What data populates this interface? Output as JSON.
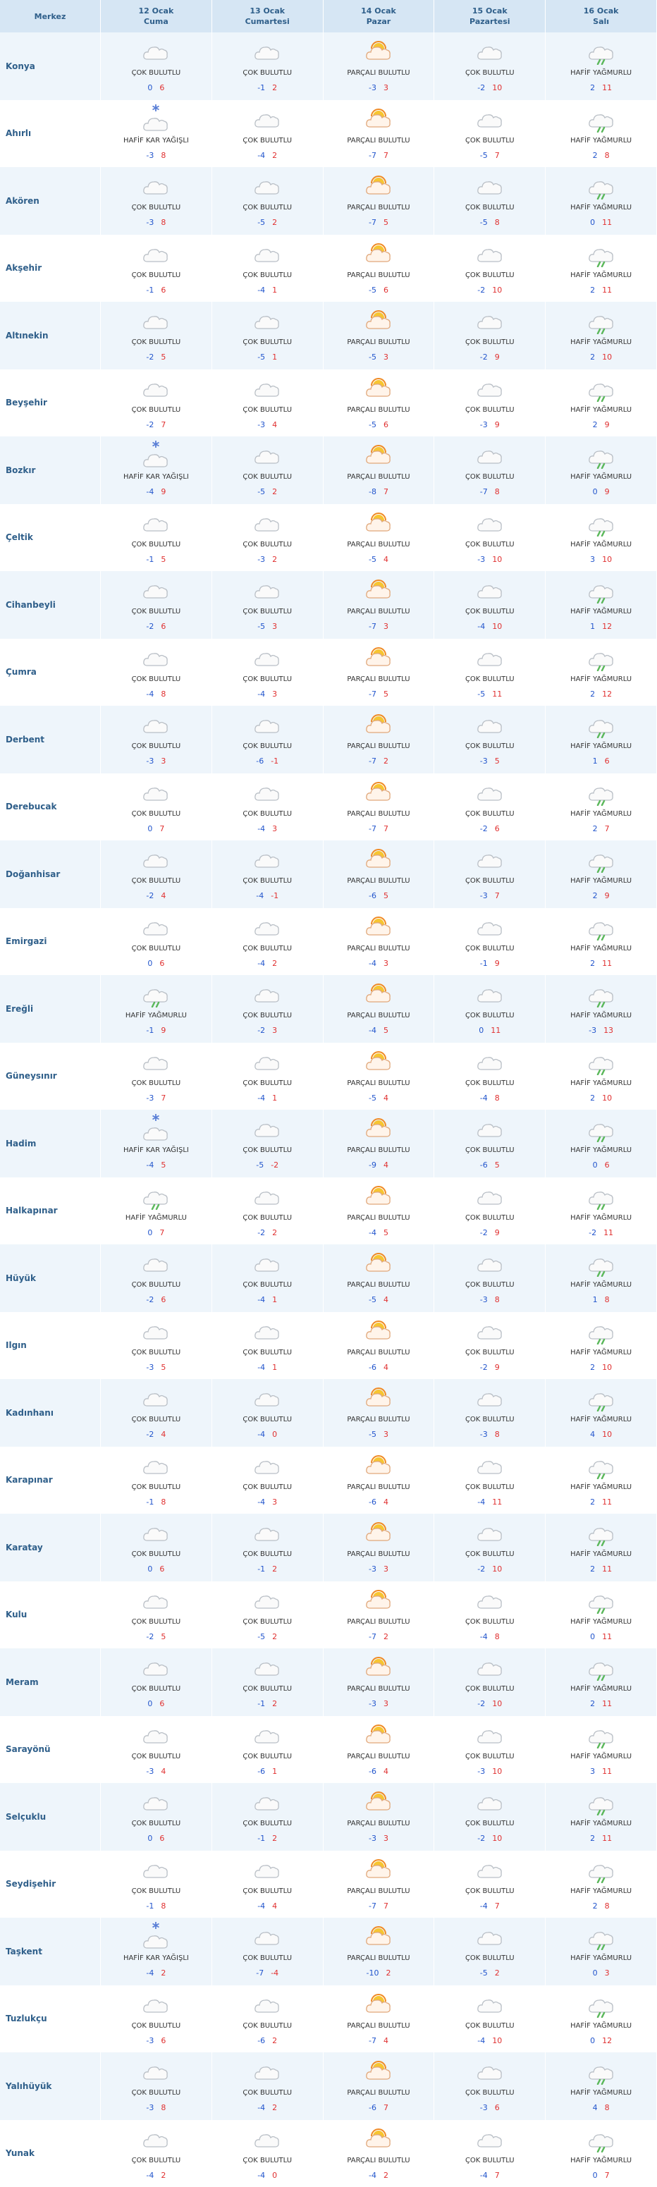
{
  "header": {
    "corner": "Merkez",
    "days": [
      {
        "date": "12 Ocak",
        "day": "Cuma"
      },
      {
        "date": "13 Ocak",
        "day": "Cumartesi"
      },
      {
        "date": "14 Ocak",
        "day": "Pazar"
      },
      {
        "date": "15 Ocak",
        "day": "Pazartesi"
      },
      {
        "date": "16 Ocak",
        "day": "Salı"
      }
    ]
  },
  "rows": [
    {
      "name": "Konya",
      "cells": [
        {
          "c": "ÇOK BULUTLU",
          "lo": 0,
          "hi": 6
        },
        {
          "c": "ÇOK BULUTLU",
          "lo": -1,
          "hi": 2
        },
        {
          "c": "PARÇALI BULUTLU",
          "lo": -3,
          "hi": 3
        },
        {
          "c": "ÇOK BULUTLU",
          "lo": -2,
          "hi": 10
        },
        {
          "c": "HAFİF YAĞMURLU",
          "lo": 2,
          "hi": 11
        }
      ]
    },
    {
      "name": "Ahırlı",
      "cells": [
        {
          "c": "HAFİF KAR YAĞIŞLI",
          "lo": -3,
          "hi": 8
        },
        {
          "c": "ÇOK BULUTLU",
          "lo": -4,
          "hi": 2
        },
        {
          "c": "PARÇALI BULUTLU",
          "lo": -7,
          "hi": 7
        },
        {
          "c": "ÇOK BULUTLU",
          "lo": -5,
          "hi": 7
        },
        {
          "c": "HAFİF YAĞMURLU",
          "lo": 2,
          "hi": 8
        }
      ]
    },
    {
      "name": "Akören",
      "cells": [
        {
          "c": "ÇOK BULUTLU",
          "lo": -3,
          "hi": 8
        },
        {
          "c": "ÇOK BULUTLU",
          "lo": -5,
          "hi": 2
        },
        {
          "c": "PARÇALI BULUTLU",
          "lo": -7,
          "hi": 5
        },
        {
          "c": "ÇOK BULUTLU",
          "lo": -5,
          "hi": 8
        },
        {
          "c": "HAFİF YAĞMURLU",
          "lo": 0,
          "hi": 11
        }
      ]
    },
    {
      "name": "Akşehir",
      "cells": [
        {
          "c": "ÇOK BULUTLU",
          "lo": -1,
          "hi": 6
        },
        {
          "c": "ÇOK BULUTLU",
          "lo": -4,
          "hi": 1
        },
        {
          "c": "PARÇALI BULUTLU",
          "lo": -5,
          "hi": 6
        },
        {
          "c": "ÇOK BULUTLU",
          "lo": -2,
          "hi": 10
        },
        {
          "c": "HAFİF YAĞMURLU",
          "lo": 2,
          "hi": 11
        }
      ]
    },
    {
      "name": "Altınekin",
      "cells": [
        {
          "c": "ÇOK BULUTLU",
          "lo": -2,
          "hi": 5
        },
        {
          "c": "ÇOK BULUTLU",
          "lo": -5,
          "hi": 1
        },
        {
          "c": "PARÇALI BULUTLU",
          "lo": -5,
          "hi": 3
        },
        {
          "c": "ÇOK BULUTLU",
          "lo": -2,
          "hi": 9
        },
        {
          "c": "HAFİF YAĞMURLU",
          "lo": 2,
          "hi": 10
        }
      ]
    },
    {
      "name": "Beyşehir",
      "cells": [
        {
          "c": "ÇOK BULUTLU",
          "lo": -2,
          "hi": 7
        },
        {
          "c": "ÇOK BULUTLU",
          "lo": -3,
          "hi": 4
        },
        {
          "c": "PARÇALI BULUTLU",
          "lo": -5,
          "hi": 6
        },
        {
          "c": "ÇOK BULUTLU",
          "lo": -3,
          "hi": 9
        },
        {
          "c": "HAFİF YAĞMURLU",
          "lo": 2,
          "hi": 9
        }
      ]
    },
    {
      "name": "Bozkır",
      "cells": [
        {
          "c": "HAFİF KAR YAĞIŞLI",
          "lo": -4,
          "hi": 9
        },
        {
          "c": "ÇOK BULUTLU",
          "lo": -5,
          "hi": 2
        },
        {
          "c": "PARÇALI BULUTLU",
          "lo": -8,
          "hi": 7
        },
        {
          "c": "ÇOK BULUTLU",
          "lo": -7,
          "hi": 8
        },
        {
          "c": "HAFİF YAĞMURLU",
          "lo": 0,
          "hi": 9
        }
      ]
    },
    {
      "name": "Çeltik",
      "cells": [
        {
          "c": "ÇOK BULUTLU",
          "lo": -1,
          "hi": 5
        },
        {
          "c": "ÇOK BULUTLU",
          "lo": -3,
          "hi": 2
        },
        {
          "c": "PARÇALI BULUTLU",
          "lo": -5,
          "hi": 4
        },
        {
          "c": "ÇOK BULUTLU",
          "lo": -3,
          "hi": 10
        },
        {
          "c": "HAFİF YAĞMURLU",
          "lo": 3,
          "hi": 10
        }
      ]
    },
    {
      "name": "Cihanbeyli",
      "cells": [
        {
          "c": "ÇOK BULUTLU",
          "lo": -2,
          "hi": 6
        },
        {
          "c": "ÇOK BULUTLU",
          "lo": -5,
          "hi": 3
        },
        {
          "c": "PARÇALI BULUTLU",
          "lo": -7,
          "hi": 3
        },
        {
          "c": "ÇOK BULUTLU",
          "lo": -4,
          "hi": 10
        },
        {
          "c": "HAFİF YAĞMURLU",
          "lo": 1,
          "hi": 12
        }
      ]
    },
    {
      "name": "Çumra",
      "cells": [
        {
          "c": "ÇOK BULUTLU",
          "lo": -4,
          "hi": 8
        },
        {
          "c": "ÇOK BULUTLU",
          "lo": -4,
          "hi": 3
        },
        {
          "c": "PARÇALI BULUTLU",
          "lo": -7,
          "hi": 5
        },
        {
          "c": "ÇOK BULUTLU",
          "lo": -5,
          "hi": 11
        },
        {
          "c": "HAFİF YAĞMURLU",
          "lo": 2,
          "hi": 12
        }
      ]
    },
    {
      "name": "Derbent",
      "cells": [
        {
          "c": "ÇOK BULUTLU",
          "lo": -3,
          "hi": 3
        },
        {
          "c": "ÇOK BULUTLU",
          "lo": -6,
          "hi": -1
        },
        {
          "c": "PARÇALI BULUTLU",
          "lo": -7,
          "hi": 2
        },
        {
          "c": "ÇOK BULUTLU",
          "lo": -3,
          "hi": 5
        },
        {
          "c": "HAFİF YAĞMURLU",
          "lo": 1,
          "hi": 6
        }
      ]
    },
    {
      "name": "Derebucak",
      "cells": [
        {
          "c": "ÇOK BULUTLU",
          "lo": 0,
          "hi": 7
        },
        {
          "c": "ÇOK BULUTLU",
          "lo": -4,
          "hi": 3
        },
        {
          "c": "PARÇALI BULUTLU",
          "lo": -7,
          "hi": 7
        },
        {
          "c": "ÇOK BULUTLU",
          "lo": -2,
          "hi": 6
        },
        {
          "c": "HAFİF YAĞMURLU",
          "lo": 2,
          "hi": 7
        }
      ]
    },
    {
      "name": "Doğanhisar",
      "cells": [
        {
          "c": "ÇOK BULUTLU",
          "lo": -2,
          "hi": 4
        },
        {
          "c": "ÇOK BULUTLU",
          "lo": -4,
          "hi": -1
        },
        {
          "c": "PARÇALI BULUTLU",
          "lo": -6,
          "hi": 5
        },
        {
          "c": "ÇOK BULUTLU",
          "lo": -3,
          "hi": 7
        },
        {
          "c": "HAFİF YAĞMURLU",
          "lo": 2,
          "hi": 9
        }
      ]
    },
    {
      "name": "Emirgazi",
      "cells": [
        {
          "c": "ÇOK BULUTLU",
          "lo": 0,
          "hi": 6
        },
        {
          "c": "ÇOK BULUTLU",
          "lo": -4,
          "hi": 2
        },
        {
          "c": "PARÇALI BULUTLU",
          "lo": -4,
          "hi": 3
        },
        {
          "c": "ÇOK BULUTLU",
          "lo": -1,
          "hi": 9
        },
        {
          "c": "HAFİF YAĞMURLU",
          "lo": 2,
          "hi": 11
        }
      ]
    },
    {
      "name": "Ereğli",
      "cells": [
        {
          "c": "HAFİF YAĞMURLU",
          "lo": -1,
          "hi": 9
        },
        {
          "c": "ÇOK BULUTLU",
          "lo": -2,
          "hi": 3
        },
        {
          "c": "PARÇALI BULUTLU",
          "lo": -4,
          "hi": 5
        },
        {
          "c": "ÇOK BULUTLU",
          "lo": 0,
          "hi": 11
        },
        {
          "c": "HAFİF YAĞMURLU",
          "lo": -3,
          "hi": 13
        }
      ]
    },
    {
      "name": "Güneysınır",
      "cells": [
        {
          "c": "ÇOK BULUTLU",
          "lo": -3,
          "hi": 7
        },
        {
          "c": "ÇOK BULUTLU",
          "lo": -4,
          "hi": 1
        },
        {
          "c": "PARÇALI BULUTLU",
          "lo": -5,
          "hi": 4
        },
        {
          "c": "ÇOK BULUTLU",
          "lo": -4,
          "hi": 8
        },
        {
          "c": "HAFİF YAĞMURLU",
          "lo": 2,
          "hi": 10
        }
      ]
    },
    {
      "name": "Hadim",
      "cells": [
        {
          "c": "HAFİF KAR YAĞIŞLI",
          "lo": -4,
          "hi": 5
        },
        {
          "c": "ÇOK BULUTLU",
          "lo": -5,
          "hi": -2
        },
        {
          "c": "PARÇALI BULUTLU",
          "lo": -9,
          "hi": 4
        },
        {
          "c": "ÇOK BULUTLU",
          "lo": -6,
          "hi": 5
        },
        {
          "c": "HAFİF YAĞMURLU",
          "lo": 0,
          "hi": 6
        }
      ]
    },
    {
      "name": "Halkapınar",
      "cells": [
        {
          "c": "HAFİF YAĞMURLU",
          "lo": 0,
          "hi": 7
        },
        {
          "c": "ÇOK BULUTLU",
          "lo": -2,
          "hi": 2
        },
        {
          "c": "PARÇALI BULUTLU",
          "lo": -4,
          "hi": 5
        },
        {
          "c": "ÇOK BULUTLU",
          "lo": -2,
          "hi": 9
        },
        {
          "c": "HAFİF YAĞMURLU",
          "lo": -2,
          "hi": 11
        }
      ]
    },
    {
      "name": "Hüyük",
      "cells": [
        {
          "c": "ÇOK BULUTLU",
          "lo": -2,
          "hi": 6
        },
        {
          "c": "ÇOK BULUTLU",
          "lo": -4,
          "hi": 1
        },
        {
          "c": "PARÇALI BULUTLU",
          "lo": -5,
          "hi": 4
        },
        {
          "c": "ÇOK BULUTLU",
          "lo": -3,
          "hi": 8
        },
        {
          "c": "HAFİF YAĞMURLU",
          "lo": 1,
          "hi": 8
        }
      ]
    },
    {
      "name": "Ilgın",
      "cells": [
        {
          "c": "ÇOK BULUTLU",
          "lo": -3,
          "hi": 5
        },
        {
          "c": "ÇOK BULUTLU",
          "lo": -4,
          "hi": 1
        },
        {
          "c": "PARÇALI BULUTLU",
          "lo": -6,
          "hi": 4
        },
        {
          "c": "ÇOK BULUTLU",
          "lo": -2,
          "hi": 9
        },
        {
          "c": "HAFİF YAĞMURLU",
          "lo": 2,
          "hi": 10
        }
      ]
    },
    {
      "name": "Kadınhanı",
      "cells": [
        {
          "c": "ÇOK BULUTLU",
          "lo": -2,
          "hi": 4
        },
        {
          "c": "ÇOK BULUTLU",
          "lo": -4,
          "hi": 0
        },
        {
          "c": "PARÇALI BULUTLU",
          "lo": -5,
          "hi": 3
        },
        {
          "c": "ÇOK BULUTLU",
          "lo": -3,
          "hi": 8
        },
        {
          "c": "HAFİF YAĞMURLU",
          "lo": 4,
          "hi": 10
        }
      ]
    },
    {
      "name": "Karapınar",
      "cells": [
        {
          "c": "ÇOK BULUTLU",
          "lo": -1,
          "hi": 8
        },
        {
          "c": "ÇOK BULUTLU",
          "lo": -4,
          "hi": 3
        },
        {
          "c": "PARÇALI BULUTLU",
          "lo": -6,
          "hi": 4
        },
        {
          "c": "ÇOK BULUTLU",
          "lo": -4,
          "hi": 11
        },
        {
          "c": "HAFİF YAĞMURLU",
          "lo": 2,
          "hi": 11
        }
      ]
    },
    {
      "name": "Karatay",
      "cells": [
        {
          "c": "ÇOK BULUTLU",
          "lo": 0,
          "hi": 6
        },
        {
          "c": "ÇOK BULUTLU",
          "lo": -1,
          "hi": 2
        },
        {
          "c": "PARÇALI BULUTLU",
          "lo": -3,
          "hi": 3
        },
        {
          "c": "ÇOK BULUTLU",
          "lo": -2,
          "hi": 10
        },
        {
          "c": "HAFİF YAĞMURLU",
          "lo": 2,
          "hi": 11
        }
      ]
    },
    {
      "name": "Kulu",
      "cells": [
        {
          "c": "ÇOK BULUTLU",
          "lo": -2,
          "hi": 5
        },
        {
          "c": "ÇOK BULUTLU",
          "lo": -5,
          "hi": 2
        },
        {
          "c": "PARÇALI BULUTLU",
          "lo": -7,
          "hi": 2
        },
        {
          "c": "ÇOK BULUTLU",
          "lo": -4,
          "hi": 8
        },
        {
          "c": "HAFİF YAĞMURLU",
          "lo": 0,
          "hi": 11
        }
      ]
    },
    {
      "name": "Meram",
      "cells": [
        {
          "c": "ÇOK BULUTLU",
          "lo": 0,
          "hi": 6
        },
        {
          "c": "ÇOK BULUTLU",
          "lo": -1,
          "hi": 2
        },
        {
          "c": "PARÇALI BULUTLU",
          "lo": -3,
          "hi": 3
        },
        {
          "c": "ÇOK BULUTLU",
          "lo": -2,
          "hi": 10
        },
        {
          "c": "HAFİF YAĞMURLU",
          "lo": 2,
          "hi": 11
        }
      ]
    },
    {
      "name": "Sarayönü",
      "cells": [
        {
          "c": "ÇOK BULUTLU",
          "lo": -3,
          "hi": 4
        },
        {
          "c": "ÇOK BULUTLU",
          "lo": -6,
          "hi": 1
        },
        {
          "c": "PARÇALI BULUTLU",
          "lo": -6,
          "hi": 4
        },
        {
          "c": "ÇOK BULUTLU",
          "lo": -3,
          "hi": 10
        },
        {
          "c": "HAFİF YAĞMURLU",
          "lo": 3,
          "hi": 11
        }
      ]
    },
    {
      "name": "Selçuklu",
      "cells": [
        {
          "c": "ÇOK BULUTLU",
          "lo": 0,
          "hi": 6
        },
        {
          "c": "ÇOK BULUTLU",
          "lo": -1,
          "hi": 2
        },
        {
          "c": "PARÇALI BULUTLU",
          "lo": -3,
          "hi": 3
        },
        {
          "c": "ÇOK BULUTLU",
          "lo": -2,
          "hi": 10
        },
        {
          "c": "HAFİF YAĞMURLU",
          "lo": 2,
          "hi": 11
        }
      ]
    },
    {
      "name": "Seydişehir",
      "cells": [
        {
          "c": "ÇOK BULUTLU",
          "lo": -1,
          "hi": 8
        },
        {
          "c": "ÇOK BULUTLU",
          "lo": -4,
          "hi": 4
        },
        {
          "c": "PARÇALI BULUTLU",
          "lo": -7,
          "hi": 7
        },
        {
          "c": "ÇOK BULUTLU",
          "lo": -4,
          "hi": 7
        },
        {
          "c": "HAFİF YAĞMURLU",
          "lo": 2,
          "hi": 8
        }
      ]
    },
    {
      "name": "Taşkent",
      "cells": [
        {
          "c": "HAFİF KAR YAĞIŞLI",
          "lo": -4,
          "hi": 2
        },
        {
          "c": "ÇOK BULUTLU",
          "lo": -7,
          "hi": -4
        },
        {
          "c": "PARÇALI BULUTLU",
          "lo": -10,
          "hi": 2
        },
        {
          "c": "ÇOK BULUTLU",
          "lo": -5,
          "hi": 2
        },
        {
          "c": "HAFİF YAĞMURLU",
          "lo": 0,
          "hi": 3
        }
      ]
    },
    {
      "name": "Tuzlukçu",
      "cells": [
        {
          "c": "ÇOK BULUTLU",
          "lo": -3,
          "hi": 6
        },
        {
          "c": "ÇOK BULUTLU",
          "lo": -6,
          "hi": 2
        },
        {
          "c": "PARÇALI BULUTLU",
          "lo": -7,
          "hi": 4
        },
        {
          "c": "ÇOK BULUTLU",
          "lo": -4,
          "hi": 10
        },
        {
          "c": "HAFİF YAĞMURLU",
          "lo": 0,
          "hi": 12
        }
      ]
    },
    {
      "name": "Yalıhüyük",
      "cells": [
        {
          "c": "ÇOK BULUTLU",
          "lo": -3,
          "hi": 8
        },
        {
          "c": "ÇOK BULUTLU",
          "lo": -4,
          "hi": 2
        },
        {
          "c": "PARÇALI BULUTLU",
          "lo": -6,
          "hi": 7
        },
        {
          "c": "ÇOK BULUTLU",
          "lo": -3,
          "hi": 6
        },
        {
          "c": "HAFİF YAĞMURLU",
          "lo": 4,
          "hi": 8
        }
      ]
    },
    {
      "name": "Yunak",
      "cells": [
        {
          "c": "ÇOK BULUTLU",
          "lo": -4,
          "hi": 2
        },
        {
          "c": "ÇOK BULUTLU",
          "lo": -4,
          "hi": 0
        },
        {
          "c": "PARÇALI BULUTLU",
          "lo": -4,
          "hi": 2
        },
        {
          "c": "ÇOK BULUTLU",
          "lo": -4,
          "hi": 7
        },
        {
          "c": "HAFİF YAĞMURLU",
          "lo": 0,
          "hi": 7
        }
      ]
    }
  ]
}
